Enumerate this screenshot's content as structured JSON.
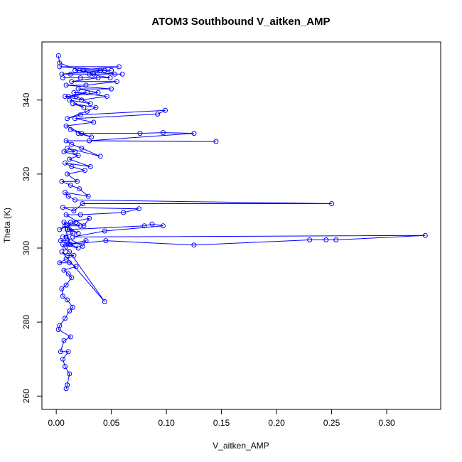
{
  "chart_data": {
    "type": "line",
    "markers": "open-circle",
    "title": "ATOM3 Southbound V_aitken_AMP",
    "xlabel": "V_aitken_AMP",
    "ylabel": "Theta (K)",
    "xlim": [
      -0.013,
      0.349
    ],
    "ylim": [
      256.4,
      355.7
    ],
    "x_ticks": [
      0.0,
      0.05,
      0.1,
      0.15,
      0.2,
      0.25,
      0.3
    ],
    "x_tick_labels": [
      "0.00",
      "0.05",
      "0.10",
      "0.15",
      "0.20",
      "0.25",
      "0.30"
    ],
    "y_ticks": [
      260,
      280,
      300,
      320,
      340
    ],
    "y_tick_labels": [
      "260",
      "280",
      "300",
      "320",
      "340"
    ],
    "grid": false,
    "colors": {
      "series": "#0000ff",
      "axis": "#000000"
    },
    "series": [
      {
        "x": [
          0.009,
          0.01,
          0.012,
          0.008,
          0.006,
          0.011,
          0.004,
          0.007,
          0.013,
          0.002,
          0.003,
          0.008,
          0.012,
          0.015,
          0.01,
          0.006,
          0.005,
          0.009,
          0.014,
          0.011,
          0.007,
          0.018,
          0.012,
          0.003,
          0.009,
          0.016,
          0.01,
          0.005,
          0.044,
          0.012,
          0.008,
          0.006,
          0.02,
          0.013,
          0.01,
          0.004,
          0.011,
          0.027,
          0.024,
          0.009,
          0.006,
          0.015,
          0.012,
          0.02,
          0.008,
          0.003,
          0.018,
          0.01,
          0.022,
          0.007,
          0.012,
          0.045,
          0.125,
          0.23,
          0.245,
          0.254,
          0.335,
          0.015,
          0.044,
          0.097,
          0.087,
          0.08,
          0.01,
          0.013,
          0.03,
          0.025,
          0.009,
          0.022,
          0.061,
          0.075,
          0.006,
          0.016,
          0.024,
          0.25,
          0.017,
          0.011,
          0.008,
          0.029,
          0.021,
          0.013,
          0.005,
          0.019,
          0.01,
          0.026,
          0.014,
          0.008,
          0.031,
          0.012,
          0.02,
          0.007,
          0.017,
          0.01,
          0.04,
          0.023,
          0.014,
          0.009,
          0.145,
          0.03,
          0.125,
          0.097,
          0.076,
          0.02,
          0.032,
          0.013,
          0.023,
          0.009,
          0.034,
          0.017,
          0.092,
          0.099,
          0.022,
          0.01,
          0.028,
          0.036,
          0.015,
          0.025,
          0.012,
          0.031,
          0.018,
          0.008,
          0.023,
          0.046,
          0.016,
          0.028,
          0.011,
          0.038,
          0.02,
          0.05,
          0.009,
          0.027,
          0.055,
          0.014,
          0.038,
          0.006,
          0.022,
          0.049,
          0.03,
          0.013,
          0.06,
          0.005,
          0.044,
          0.053,
          0.017,
          0.057,
          0.003,
          0.05,
          0.025,
          0.04,
          0.034,
          0.021,
          0.003,
          0.002
        ],
        "y": [
          262,
          263,
          266,
          268,
          270,
          272,
          272,
          275,
          276,
          278,
          279,
          281,
          283,
          284,
          286,
          287,
          289,
          290,
          292,
          293,
          294,
          295,
          296,
          296,
          297,
          298,
          298,
          299,
          285.5,
          299,
          300,
          301,
          300,
          301,
          302,
          302,
          301,
          302,
          300.5,
          303,
          303,
          304,
          305,
          304,
          306,
          305,
          307,
          306,
          306,
          307,
          301,
          302,
          300.8,
          302.2,
          302.2,
          302.2,
          303.4,
          303,
          304.6,
          306,
          306.5,
          306,
          305,
          307,
          308,
          306,
          309,
          309,
          309.6,
          310.6,
          311,
          310,
          312,
          312,
          313,
          314,
          315,
          314,
          316,
          317,
          318,
          318,
          320,
          321,
          322,
          323,
          322,
          324,
          325,
          326,
          326,
          327,
          324.8,
          327,
          328,
          329,
          328.8,
          329,
          331,
          331.2,
          331,
          331,
          330,
          332,
          331,
          333,
          334,
          335,
          336.2,
          337.2,
          336,
          335,
          337,
          338,
          339,
          338,
          340,
          339,
          341,
          341,
          340,
          341,
          342,
          342,
          341,
          342,
          343,
          343,
          344,
          344,
          345,
          345,
          346,
          346,
          346,
          346,
          347,
          347,
          347,
          347,
          348,
          347,
          348,
          349,
          349,
          348,
          348,
          348,
          347,
          348,
          350,
          352
        ]
      }
    ]
  }
}
